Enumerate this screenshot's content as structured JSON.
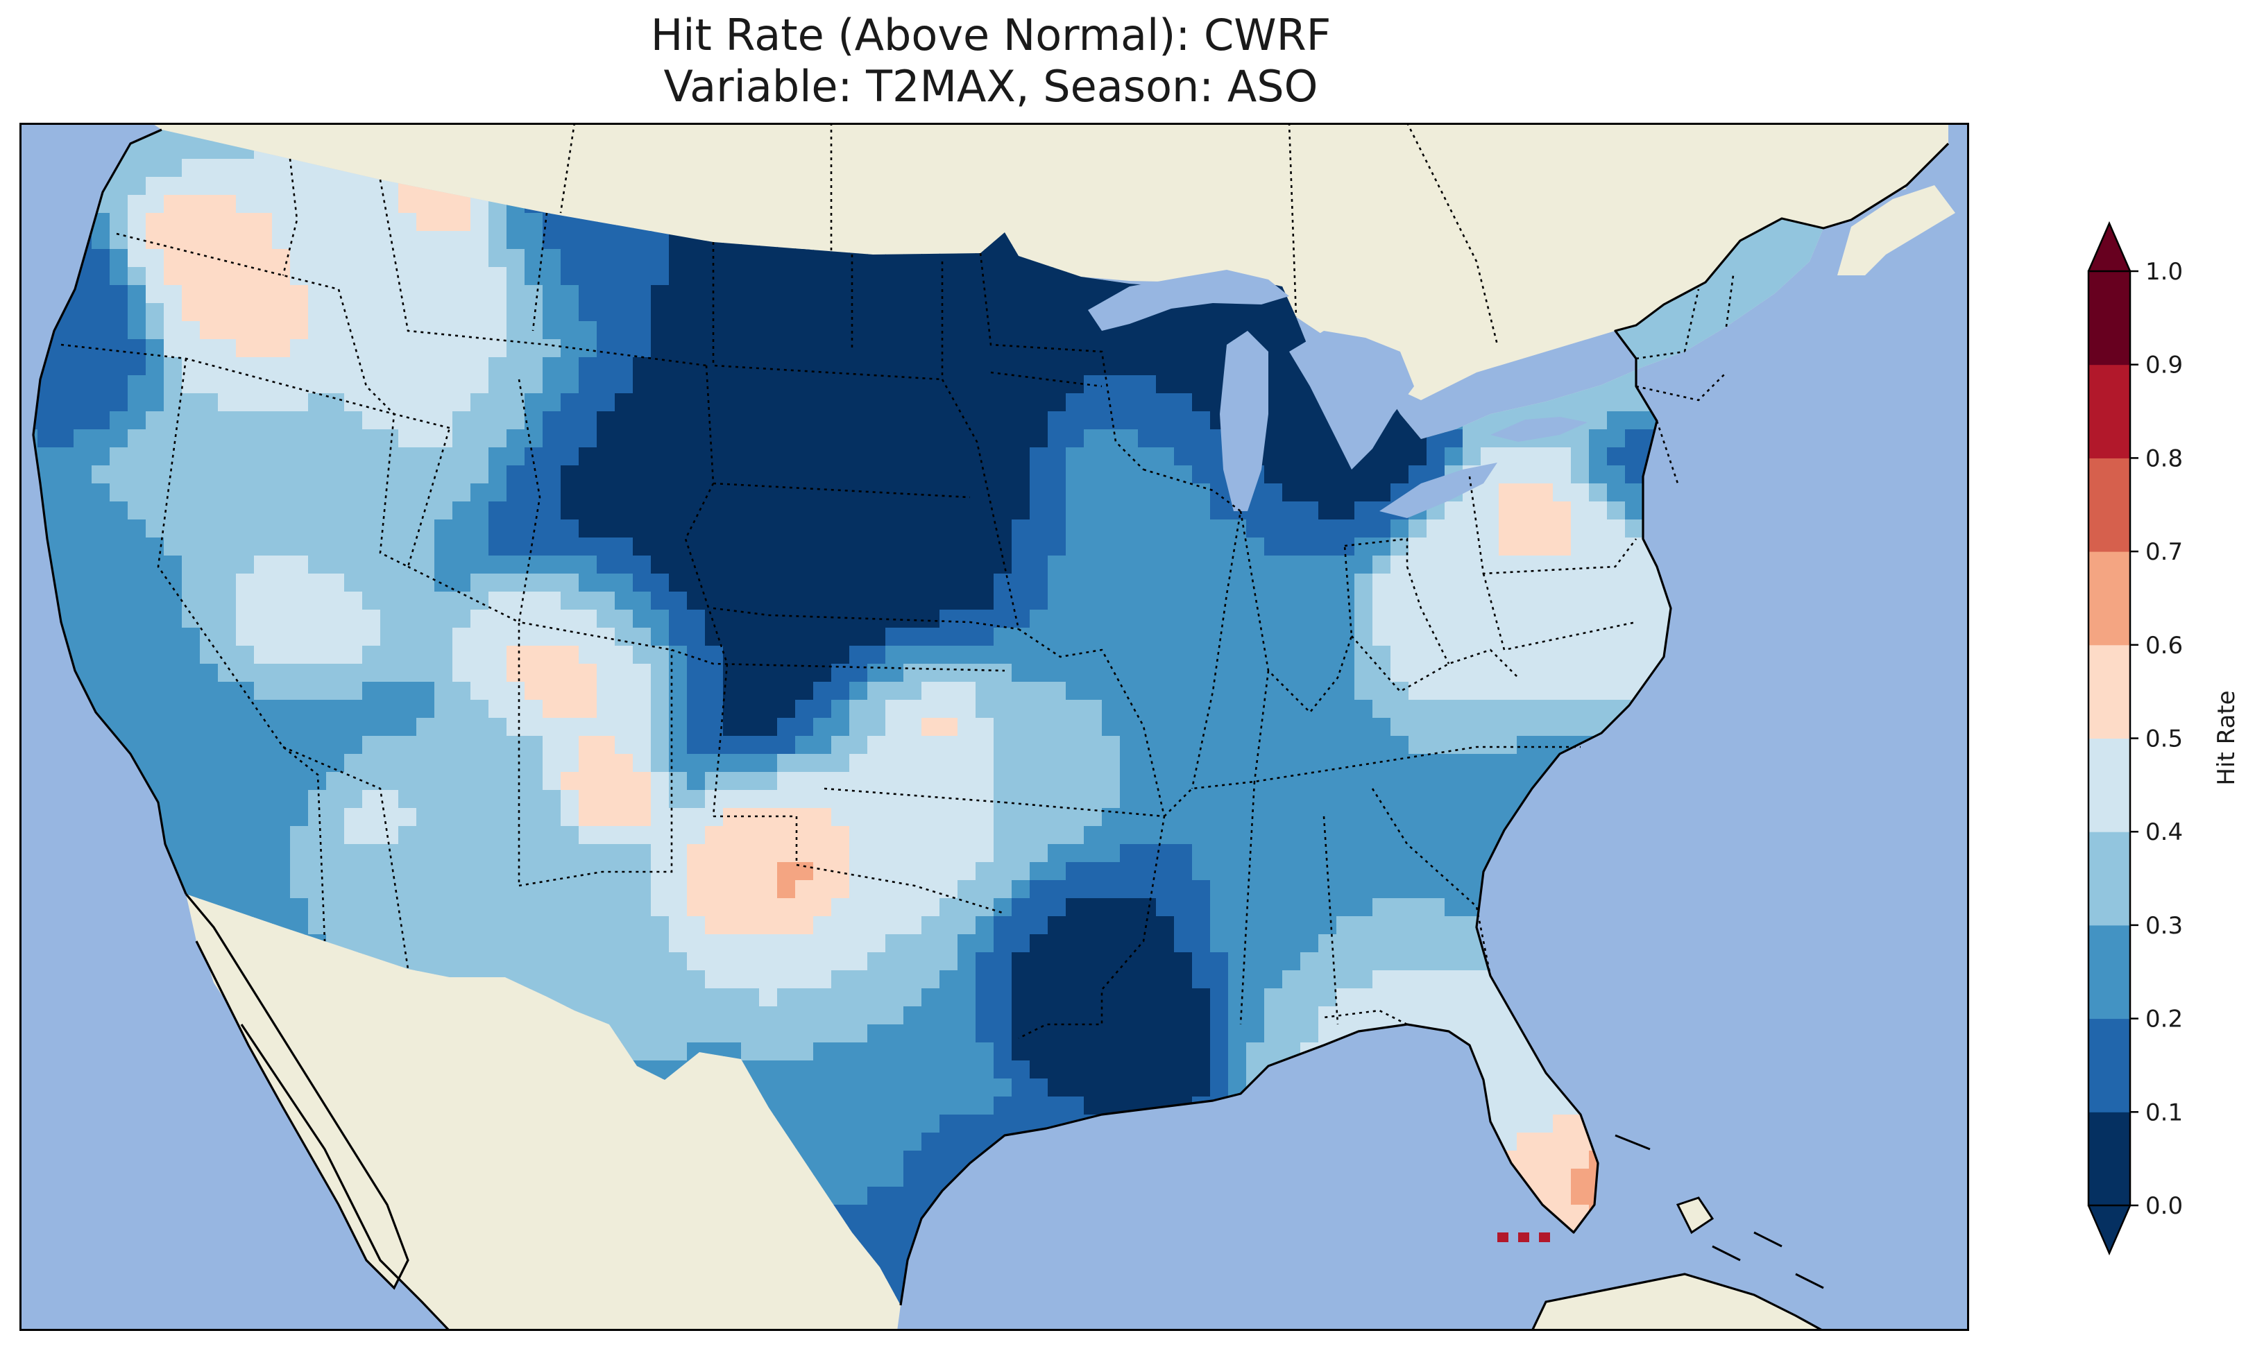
{
  "figure": {
    "title_line1": "Hit Rate (Above Normal): CWRF",
    "title_line2": "Variable: T2MAX, Season: ASO"
  },
  "colors": {
    "ocean": "#97b6e1",
    "land": "#efedda",
    "coastline": "#000000",
    "state_border": "#000000"
  },
  "colorbar": {
    "label": "Hit Rate",
    "ticks": [
      "0.0",
      "0.1",
      "0.2",
      "0.3",
      "0.4",
      "0.5",
      "0.6",
      "0.7",
      "0.8",
      "0.9",
      "1.0"
    ],
    "bins": [
      {
        "range": [
          0.0,
          0.1
        ],
        "color": "#053061"
      },
      {
        "range": [
          0.1,
          0.2
        ],
        "color": "#2166ac"
      },
      {
        "range": [
          0.2,
          0.3
        ],
        "color": "#4393c3"
      },
      {
        "range": [
          0.3,
          0.4
        ],
        "color": "#92c5de"
      },
      {
        "range": [
          0.4,
          0.5
        ],
        "color": "#d1e5f0"
      },
      {
        "range": [
          0.5,
          0.6
        ],
        "color": "#fddbc7"
      },
      {
        "range": [
          0.6,
          0.7
        ],
        "color": "#f4a582"
      },
      {
        "range": [
          0.7,
          0.8
        ],
        "color": "#d6604d"
      },
      {
        "range": [
          0.8,
          0.9
        ],
        "color": "#b2182b"
      },
      {
        "range": [
          0.9,
          1.0
        ],
        "color": "#67001f"
      }
    ],
    "extend": "both"
  }
}
